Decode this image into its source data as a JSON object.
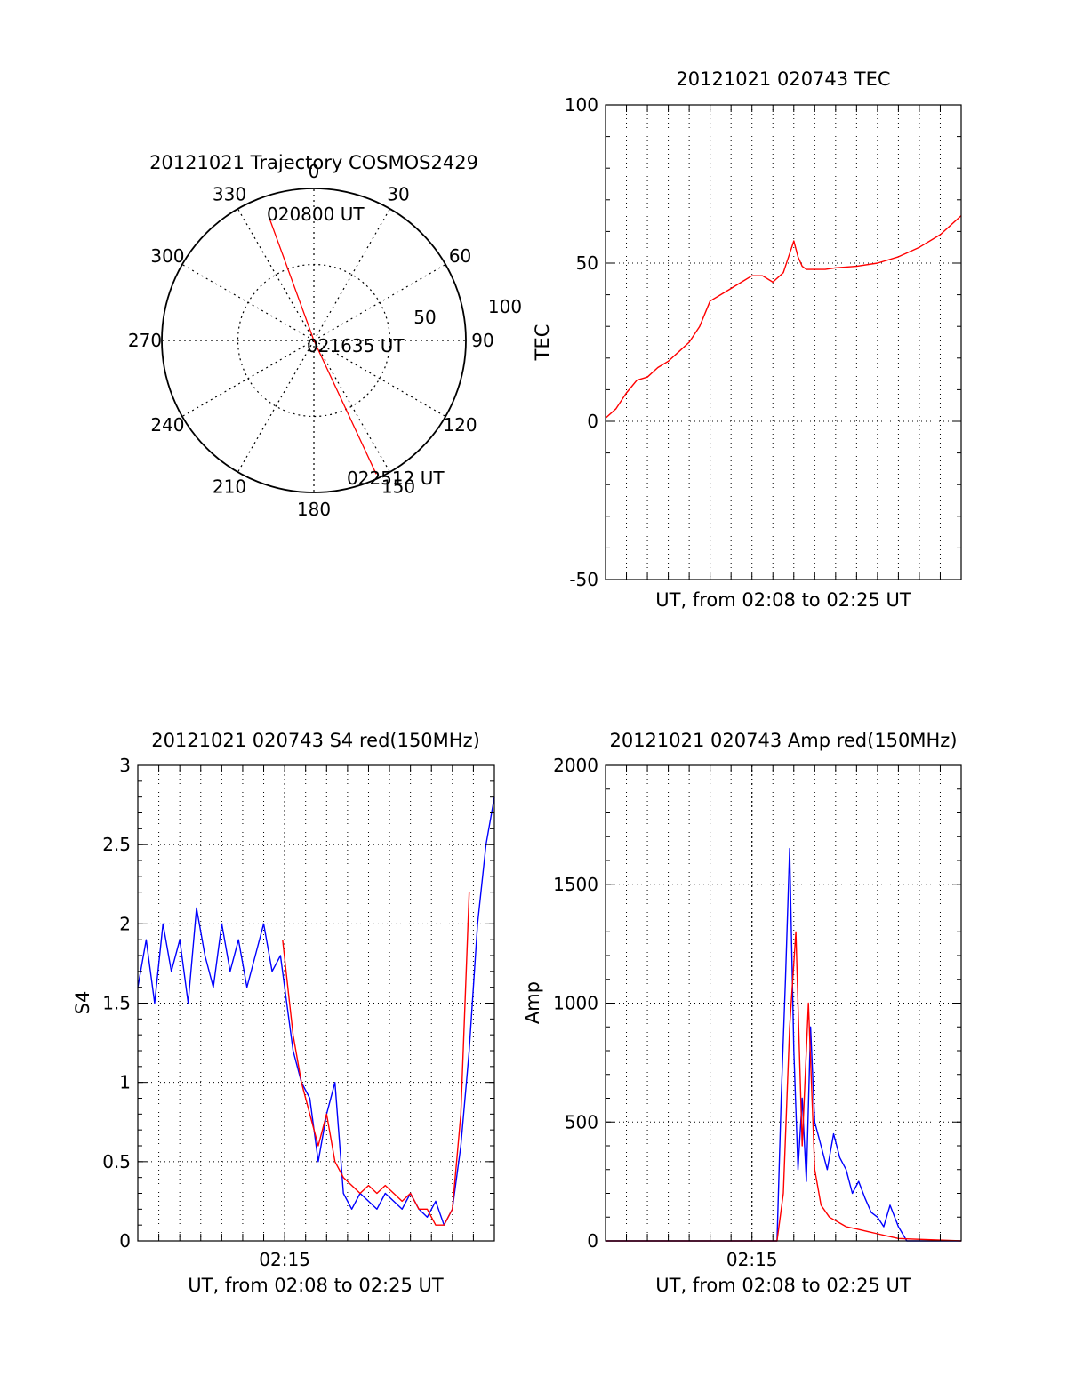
{
  "colors": {
    "red": "#ff0000",
    "blue": "#0000ff",
    "axis": "#000000",
    "grid": "#000000"
  },
  "chart_data": [
    {
      "id": "trajectory",
      "type": "polar",
      "title": "20121021 Trajectory COSMOS2429",
      "azimuth_labels": [
        "0",
        "30",
        "60",
        "90",
        "120",
        "150",
        "180",
        "210",
        "240",
        "270",
        "300",
        "330"
      ],
      "radial_labels": [
        "50",
        "100"
      ],
      "rlim": [
        0,
        100
      ],
      "grid": true,
      "series": [
        {
          "color": "red",
          "points": [
            {
              "az": 340,
              "r": 85,
              "time": "020800 UT"
            },
            {
              "az": 0,
              "r": 0,
              "time": "021635 UT"
            },
            {
              "az": 155,
              "r": 97,
              "time": "022512 UT"
            }
          ]
        }
      ]
    },
    {
      "id": "tec",
      "type": "line",
      "title": "20121021 020743 TEC",
      "xlabel": "UT, from 02:08 to 02:25 UT",
      "ylabel": "TEC",
      "ylim": [
        -50,
        100
      ],
      "yticks": [
        "-50",
        "0",
        "50",
        "100"
      ],
      "xlim_minutes": [
        0,
        17
      ],
      "grid": true,
      "series": [
        {
          "color": "red",
          "x": [
            0,
            0.5,
            1,
            1.5,
            2,
            2.5,
            3,
            3.5,
            4,
            4.5,
            5,
            5.5,
            6,
            6.5,
            7,
            7.5,
            8,
            8.5,
            9,
            9.2,
            9.4,
            9.6,
            10,
            10.5,
            11,
            12,
            13,
            14,
            15,
            16,
            17
          ],
          "y": [
            1,
            4,
            9,
            13,
            14,
            17,
            19,
            22,
            25,
            30,
            38,
            40,
            42,
            44,
            46,
            46,
            44,
            47,
            57,
            52,
            49,
            48,
            48,
            48,
            48.5,
            49,
            50,
            52,
            55,
            59,
            65
          ]
        }
      ]
    },
    {
      "id": "s4",
      "type": "line",
      "title": "20121021 020743 S4 red(150MHz)",
      "xlabel": "UT, from 02:08 to 02:25 UT",
      "ylabel": "S4",
      "ylim": [
        0,
        3
      ],
      "yticks": [
        "0",
        "0.5",
        "1",
        "1.5",
        "2",
        "2.5",
        "3"
      ],
      "xticks": [
        "02:15"
      ],
      "xlim_minutes": [
        0,
        17
      ],
      "grid": true,
      "series": [
        {
          "color": "blue",
          "x": [
            0,
            0.4,
            0.8,
            1.2,
            1.6,
            2,
            2.4,
            2.8,
            3.2,
            3.6,
            4,
            4.4,
            4.8,
            5.2,
            5.6,
            6,
            6.4,
            6.8,
            7,
            7.4,
            7.8,
            8.2,
            8.6,
            9,
            9.4,
            9.8,
            10.2,
            10.6,
            11,
            11.4,
            11.8,
            12.2,
            12.6,
            13,
            13.4,
            13.8,
            14.2,
            14.6,
            15,
            15.4,
            15.8,
            16.2,
            16.6,
            17
          ],
          "y": [
            1.6,
            1.9,
            1.5,
            2.0,
            1.7,
            1.9,
            1.5,
            2.1,
            1.8,
            1.6,
            2.0,
            1.7,
            1.9,
            1.6,
            1.8,
            2.0,
            1.7,
            1.8,
            1.6,
            1.2,
            1.0,
            0.9,
            0.5,
            0.8,
            1.0,
            0.3,
            0.2,
            0.3,
            0.25,
            0.2,
            0.3,
            0.25,
            0.2,
            0.3,
            0.2,
            0.15,
            0.25,
            0.1,
            0.2,
            0.6,
            1.2,
            2.0,
            2.5,
            2.8
          ]
        },
        {
          "color": "red",
          "x": [
            6.9,
            7.4,
            7.8,
            8.2,
            8.6,
            9,
            9.4,
            9.8,
            10.2,
            10.6,
            11,
            11.4,
            11.8,
            12.2,
            12.6,
            13,
            13.4,
            13.8,
            14.2,
            14.6,
            15,
            15.4,
            15.8
          ],
          "y": [
            1.9,
            1.3,
            1.0,
            0.8,
            0.6,
            0.8,
            0.5,
            0.4,
            0.35,
            0.3,
            0.35,
            0.3,
            0.35,
            0.3,
            0.25,
            0.3,
            0.2,
            0.2,
            0.1,
            0.1,
            0.2,
            0.8,
            2.2
          ]
        }
      ]
    },
    {
      "id": "amp",
      "type": "line",
      "title": "20121021 020743 Amp red(150MHz)",
      "xlabel": "UT, from 02:08 to 02:25 UT",
      "ylabel": "Amp",
      "ylim": [
        0,
        2000
      ],
      "yticks": [
        "0",
        "500",
        "1000",
        "1500",
        "2000"
      ],
      "xticks": [
        "02:15"
      ],
      "xlim_minutes": [
        0,
        17
      ],
      "grid": true,
      "series": [
        {
          "color": "blue",
          "x": [
            0,
            8.2,
            8.4,
            8.6,
            8.8,
            9.0,
            9.2,
            9.4,
            9.6,
            9.8,
            10.0,
            10.3,
            10.6,
            10.9,
            11.2,
            11.5,
            11.8,
            12.1,
            12.4,
            12.7,
            13.0,
            13.3,
            13.6,
            14.0,
            14.4,
            17
          ],
          "y": [
            0,
            0,
            600,
            1100,
            1650,
            800,
            300,
            600,
            250,
            900,
            500,
            400,
            300,
            450,
            350,
            300,
            200,
            250,
            180,
            120,
            100,
            60,
            150,
            60,
            0,
            0
          ]
        },
        {
          "color": "red",
          "x": [
            0,
            8.2,
            8.5,
            8.8,
            9.1,
            9.4,
            9.7,
            10.0,
            10.3,
            10.7,
            11.1,
            11.5,
            12.0,
            12.5,
            13.0,
            13.5,
            14.0,
            17
          ],
          "y": [
            0,
            0,
            200,
            900,
            1300,
            400,
            1000,
            300,
            150,
            100,
            80,
            60,
            50,
            40,
            30,
            20,
            10,
            0
          ]
        }
      ]
    }
  ],
  "labels": {
    "polar_time_start": "020800 UT",
    "polar_time_mid": "021635 UT",
    "polar_time_end": "022512 UT"
  }
}
